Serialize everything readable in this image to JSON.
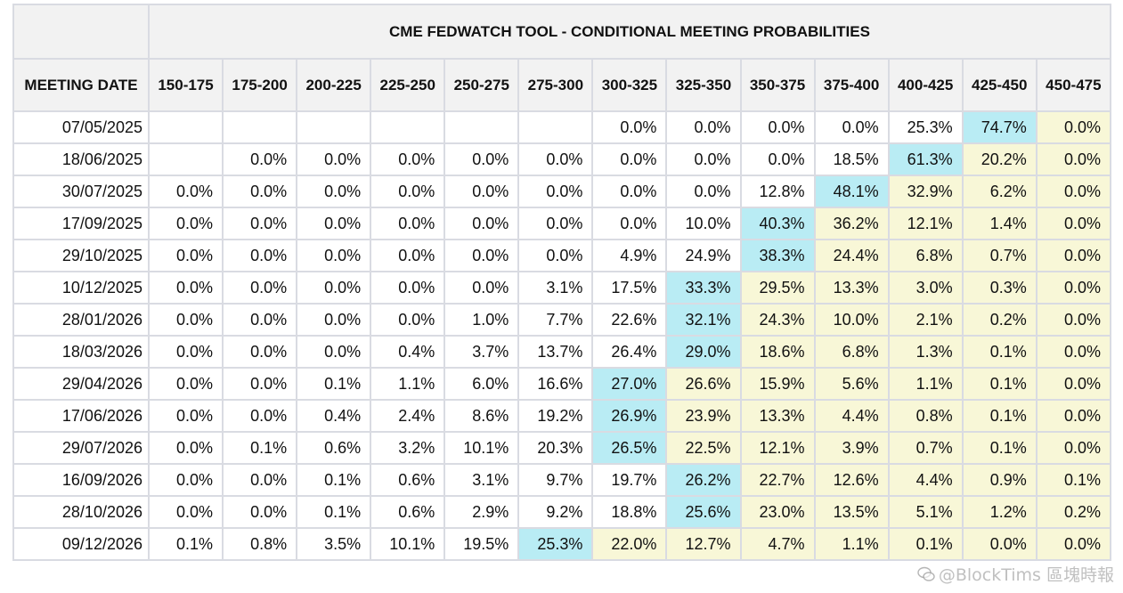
{
  "chart_data": {
    "type": "table",
    "title": "CME FEDWATCH TOOL - CONDITIONAL MEETING PROBABILITIES",
    "row_header_label": "MEETING DATE",
    "columns": [
      "150-175",
      "175-200",
      "200-225",
      "225-250",
      "250-275",
      "275-300",
      "300-325",
      "325-350",
      "350-375",
      "375-400",
      "400-425",
      "425-450",
      "450-475"
    ],
    "rows": [
      {
        "date": "07/05/2025",
        "values": [
          "",
          "",
          "",
          "",
          "",
          "",
          "0.0%",
          "0.0%",
          "0.0%",
          "0.0%",
          "25.3%",
          "74.7%",
          "0.0%"
        ],
        "highlight": 11
      },
      {
        "date": "18/06/2025",
        "values": [
          "",
          "0.0%",
          "0.0%",
          "0.0%",
          "0.0%",
          "0.0%",
          "0.0%",
          "0.0%",
          "0.0%",
          "18.5%",
          "61.3%",
          "20.2%",
          "0.0%"
        ],
        "highlight": 10
      },
      {
        "date": "30/07/2025",
        "values": [
          "0.0%",
          "0.0%",
          "0.0%",
          "0.0%",
          "0.0%",
          "0.0%",
          "0.0%",
          "0.0%",
          "12.8%",
          "48.1%",
          "32.9%",
          "6.2%",
          "0.0%"
        ],
        "highlight": 9
      },
      {
        "date": "17/09/2025",
        "values": [
          "0.0%",
          "0.0%",
          "0.0%",
          "0.0%",
          "0.0%",
          "0.0%",
          "0.0%",
          "10.0%",
          "40.3%",
          "36.2%",
          "12.1%",
          "1.4%",
          "0.0%"
        ],
        "highlight": 8
      },
      {
        "date": "29/10/2025",
        "values": [
          "0.0%",
          "0.0%",
          "0.0%",
          "0.0%",
          "0.0%",
          "0.0%",
          "4.9%",
          "24.9%",
          "38.3%",
          "24.4%",
          "6.8%",
          "0.7%",
          "0.0%"
        ],
        "highlight": 8
      },
      {
        "date": "10/12/2025",
        "values": [
          "0.0%",
          "0.0%",
          "0.0%",
          "0.0%",
          "0.0%",
          "3.1%",
          "17.5%",
          "33.3%",
          "29.5%",
          "13.3%",
          "3.0%",
          "0.3%",
          "0.0%"
        ],
        "highlight": 7
      },
      {
        "date": "28/01/2026",
        "values": [
          "0.0%",
          "0.0%",
          "0.0%",
          "0.0%",
          "1.0%",
          "7.7%",
          "22.6%",
          "32.1%",
          "24.3%",
          "10.0%",
          "2.1%",
          "0.2%",
          "0.0%"
        ],
        "highlight": 7
      },
      {
        "date": "18/03/2026",
        "values": [
          "0.0%",
          "0.0%",
          "0.0%",
          "0.4%",
          "3.7%",
          "13.7%",
          "26.4%",
          "29.0%",
          "18.6%",
          "6.8%",
          "1.3%",
          "0.1%",
          "0.0%"
        ],
        "highlight": 7
      },
      {
        "date": "29/04/2026",
        "values": [
          "0.0%",
          "0.0%",
          "0.1%",
          "1.1%",
          "6.0%",
          "16.6%",
          "27.0%",
          "26.6%",
          "15.9%",
          "5.6%",
          "1.1%",
          "0.1%",
          "0.0%"
        ],
        "highlight": 6
      },
      {
        "date": "17/06/2026",
        "values": [
          "0.0%",
          "0.0%",
          "0.4%",
          "2.4%",
          "8.6%",
          "19.2%",
          "26.9%",
          "23.9%",
          "13.3%",
          "4.4%",
          "0.8%",
          "0.1%",
          "0.0%"
        ],
        "highlight": 6
      },
      {
        "date": "29/07/2026",
        "values": [
          "0.0%",
          "0.1%",
          "0.6%",
          "3.2%",
          "10.1%",
          "20.3%",
          "26.5%",
          "22.5%",
          "12.1%",
          "3.9%",
          "0.7%",
          "0.1%",
          "0.0%"
        ],
        "highlight": 6
      },
      {
        "date": "16/09/2026",
        "values": [
          "0.0%",
          "0.0%",
          "0.1%",
          "0.6%",
          "3.1%",
          "9.7%",
          "19.7%",
          "26.2%",
          "22.7%",
          "12.6%",
          "4.4%",
          "0.9%",
          "0.1%"
        ],
        "highlight": 7
      },
      {
        "date": "28/10/2026",
        "values": [
          "0.0%",
          "0.0%",
          "0.1%",
          "0.6%",
          "2.9%",
          "9.2%",
          "18.8%",
          "25.6%",
          "23.0%",
          "13.5%",
          "5.1%",
          "1.2%",
          "0.2%"
        ],
        "highlight": 7
      },
      {
        "date": "09/12/2026",
        "values": [
          "0.1%",
          "0.8%",
          "3.5%",
          "10.1%",
          "19.5%",
          "25.3%",
          "22.0%",
          "12.7%",
          "4.7%",
          "1.1%",
          "0.1%",
          "0.0%",
          "0.0%"
        ],
        "highlight": 5
      }
    ],
    "colors": {
      "highlight": "#b9ecf4",
      "shaded": "#f8f7d7",
      "plain": "#ffffff",
      "header_bg": "#f2f2f2",
      "border": "#d9dbe2"
    }
  },
  "watermark": {
    "text": "@BlockTims 區塊時報",
    "icon": "wechat-bubble-icon"
  }
}
